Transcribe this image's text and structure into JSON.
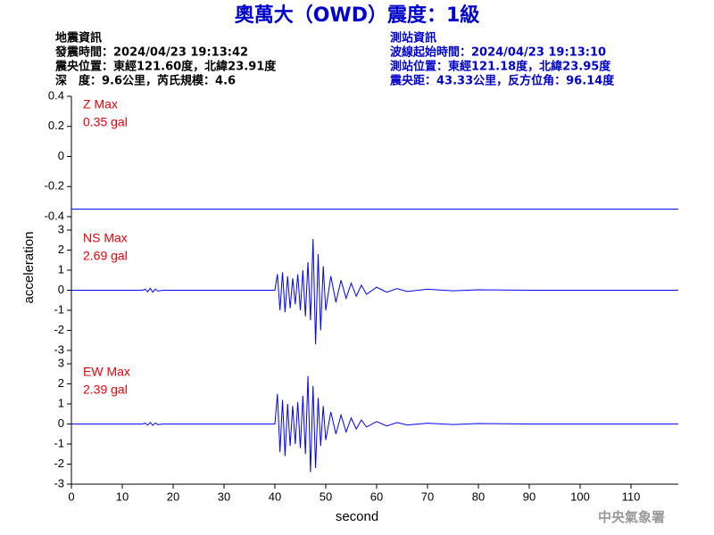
{
  "title": "奧萬大（OWD）震度：1級",
  "event_info": {
    "heading": "地震資訊",
    "lines": [
      "發震時間：2024/04/23 19:13:42",
      "震央位置：東經121.60度，北緯23.91度",
      "深　度：9.6公里，芮氏規模：4.6"
    ]
  },
  "station_info": {
    "heading": "測站資訊",
    "lines": [
      "波線起始時間：2024/04/23 19:13:10",
      "測站位置：東經121.18度，北緯23.95度",
      "震央距：43.33公里，反方位角：96.14度"
    ]
  },
  "watermark": "中央氣象署",
  "chart_data": [
    {
      "type": "line",
      "label": "Z Max",
      "max_label": "0.35 gal",
      "label_color": "#e8000b",
      "color": "#0000ff",
      "xlim": [
        0,
        119.3
      ],
      "ylim": [
        -0.4,
        0.4
      ],
      "yticks": [
        -0.4,
        -0.2,
        0,
        0.2,
        0.4
      ],
      "x": [
        0,
        119.3
      ],
      "values": [
        -0.35,
        -0.35
      ]
    },
    {
      "type": "line",
      "label": "NS Max",
      "max_label": "2.69 gal",
      "label_color": "#e8000b",
      "color": "#0000ff",
      "ylabel": "acceleration",
      "xlim": [
        0,
        119.3
      ],
      "ylim": [
        -3,
        3
      ],
      "yticks": [
        -3,
        -2,
        -1,
        0,
        1,
        2,
        3
      ],
      "x": [
        0,
        14,
        14.5,
        15,
        15.5,
        16,
        16.5,
        17,
        18,
        40,
        40.5,
        41,
        41.5,
        42,
        42.5,
        43,
        43.5,
        44,
        44.5,
        45,
        45.5,
        46,
        46.5,
        47,
        47.5,
        48,
        48.5,
        49,
        49.5,
        50,
        51,
        52,
        53,
        54,
        55,
        56,
        57,
        58,
        60,
        62,
        64,
        66,
        70,
        75,
        80,
        90,
        119.3
      ],
      "values": [
        0,
        0,
        0.05,
        -0.08,
        0.1,
        -0.1,
        0.06,
        -0.04,
        0,
        0,
        0.8,
        -1.0,
        0.9,
        -1.1,
        0.7,
        -0.9,
        0.6,
        -0.7,
        0.8,
        -1.0,
        1.0,
        -1.3,
        1.4,
        -1.5,
        2.55,
        -2.7,
        1.8,
        -2.0,
        1.2,
        -1.0,
        0.7,
        -0.6,
        0.5,
        -0.4,
        0.35,
        -0.3,
        0.25,
        -0.2,
        0.15,
        -0.1,
        0.08,
        -0.06,
        0.05,
        -0.03,
        0.02,
        0,
        0
      ]
    },
    {
      "type": "line",
      "label": "EW Max",
      "max_label": "2.39 gal",
      "label_color": "#e8000b",
      "color": "#0000ff",
      "xlabel": "second",
      "xlim": [
        0,
        119.3
      ],
      "ylim": [
        -3,
        3
      ],
      "yticks": [
        -3,
        -2,
        -1,
        0,
        1,
        2,
        3
      ],
      "xticks": [
        0,
        10,
        20,
        30,
        40,
        50,
        60,
        70,
        80,
        90,
        100,
        110
      ],
      "x": [
        0,
        14,
        14.5,
        15,
        15.5,
        16,
        16.5,
        17,
        18,
        40,
        40.5,
        41,
        41.5,
        42,
        42.5,
        43,
        43.5,
        44,
        44.5,
        45,
        45.5,
        46,
        46.5,
        47,
        47.5,
        48,
        48.5,
        49,
        49.5,
        50,
        51,
        52,
        53,
        54,
        55,
        56,
        57,
        58,
        60,
        62,
        64,
        66,
        70,
        75,
        80,
        90,
        119.3
      ],
      "values": [
        0,
        0,
        0.04,
        -0.06,
        0.08,
        -0.07,
        0.05,
        -0.03,
        0,
        0,
        1.5,
        -1.4,
        1.2,
        -1.6,
        1.0,
        -1.1,
        0.9,
        -1.0,
        1.1,
        -1.2,
        1.4,
        -1.5,
        2.39,
        -2.4,
        1.9,
        -2.2,
        1.3,
        -1.1,
        0.9,
        -0.8,
        0.6,
        -0.5,
        0.45,
        -0.4,
        0.3,
        -0.25,
        0.2,
        -0.15,
        0.12,
        -0.1,
        0.07,
        -0.05,
        0.04,
        -0.03,
        0.02,
        0,
        0
      ]
    }
  ]
}
